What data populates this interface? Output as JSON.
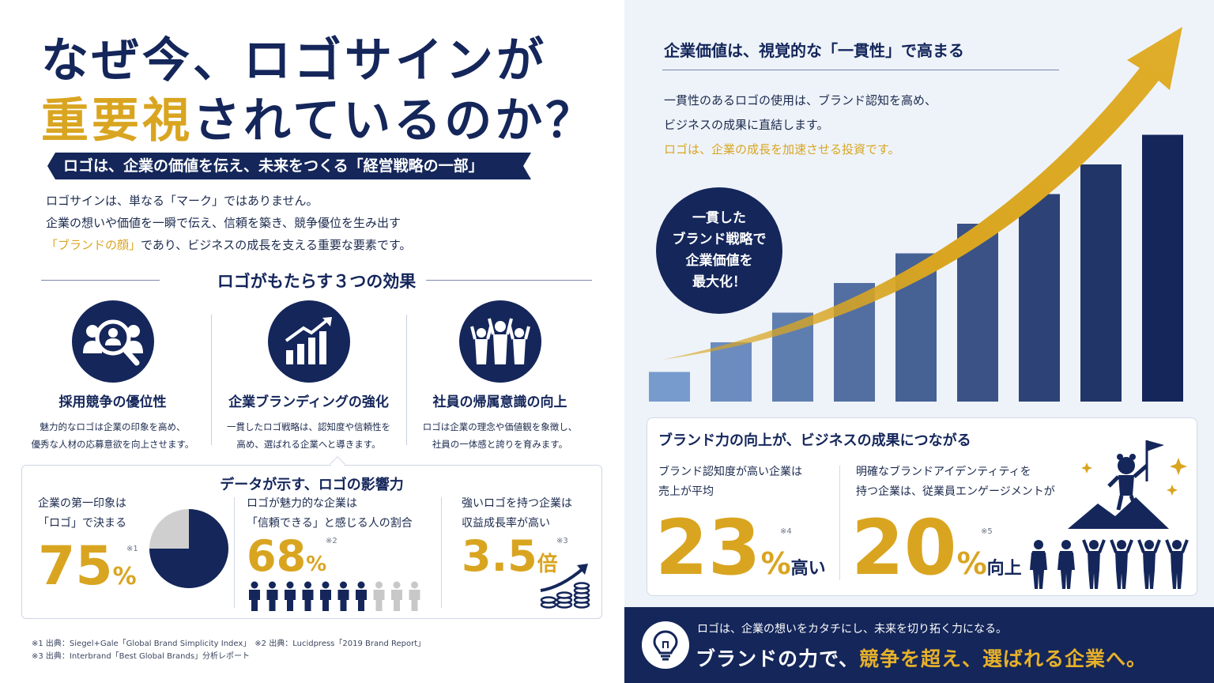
{
  "title": {
    "line1": "なぜ今、ロゴサインが",
    "line2_highlight": "重要視",
    "line2_rest": "されているのか？"
  },
  "banner": "ロゴは、企業の価値を伝え、未来をつくる「経営戦略の一部」",
  "intro": {
    "line1": "ロゴサインは、単なる「マーク」ではありません。",
    "line2": "企業の想いや価値を一瞬で伝え、信頼を築き、競争優位を生み出す",
    "line3_highlight": "「ブランドの顔」",
    "line3_rest": "であり、ビジネスの成長を支える重要な要素です。"
  },
  "effects": {
    "heading": "ロゴがもたらす３つの効果",
    "items": [
      {
        "icon": "recruit-search-icon",
        "title": "採用競争の優位性",
        "desc1": "魅力的なロゴは企業の印象を高め、",
        "desc2": "優秀な人材の応募意欲を向上させます。"
      },
      {
        "icon": "growth-chart-icon",
        "title": "企業ブランディングの強化",
        "desc1": "一貫したロゴ戦略は、認知度や信頼性を",
        "desc2": "高め、選ばれる企業へと導きます。"
      },
      {
        "icon": "team-cheer-icon",
        "title": "社員の帰属意識の向上",
        "desc1": "ロゴは企業の理念や価値観を象徴し、",
        "desc2": "社員の一体感と誇りを育みます。"
      }
    ]
  },
  "data_section": {
    "heading": "データが示す、ロゴの影響力",
    "stats": [
      {
        "label1": "企業の第一印象は",
        "label2": "「ロゴ」で決まる",
        "value": "75",
        "unit": "%",
        "note": "※1",
        "pie_fraction": 0.75
      },
      {
        "label1": "ロゴが魅力的な企業は",
        "label2": "「信頼できる」と感じる人の割合",
        "value": "68",
        "unit": "%",
        "note": "※2",
        "people_filled": 7,
        "people_total": 10
      },
      {
        "label1": "強いロゴを持つ企業は",
        "label2": "収益成長率が高い",
        "value": "3.5",
        "unit": "倍",
        "note": "※3"
      }
    ]
  },
  "sources": {
    "line1": "※1 出典：Siegel+Gale「Global Brand Simplicity Index」　※2 出典：Lucidpress「2019 Brand Report」",
    "line2": "※3 出典：Interbrand「Best Global Brands」分析レポート"
  },
  "right": {
    "heading": "企業価値は、視覚的な「一貫性」で高まる",
    "text1": "一貫性のあるロゴの使用は、ブランド認知を高め、",
    "text2": "ビジネスの成果に直結します。",
    "text3": "ロゴは、企業の成長を加速させる投資です。",
    "circle": {
      "l1": "一貫した",
      "l2": "ブランド戦略で",
      "l3": "企業価値を",
      "l4": "最大化！"
    },
    "bars": [
      1,
      2,
      3,
      4,
      5,
      6,
      7,
      8,
      9
    ]
  },
  "brand_box": {
    "heading": "ブランド力の向上が、ビジネスの成果につながる",
    "left": {
      "label1": "ブランド認知度が高い企業は",
      "label2": "売上が平均",
      "value": "23",
      "unit": "%",
      "suffix": "高い",
      "note": "※4"
    },
    "right": {
      "label1": "明確なブランドアイデンティティを",
      "label2": "持つ企業は、従業員エンゲージメントが",
      "value": "20",
      "unit": "%",
      "suffix": "向上",
      "note": "※5"
    }
  },
  "footer": {
    "small": "ロゴは、企業の想いをカタチにし、未来を切り拓く力になる。",
    "big1": "ブランドの力で、",
    "big2": "競争を超え、選ばれる企業へ。"
  },
  "colors": {
    "navy": "#14265a",
    "gold": "#d9a521",
    "light_bg": "#eef3f9"
  }
}
